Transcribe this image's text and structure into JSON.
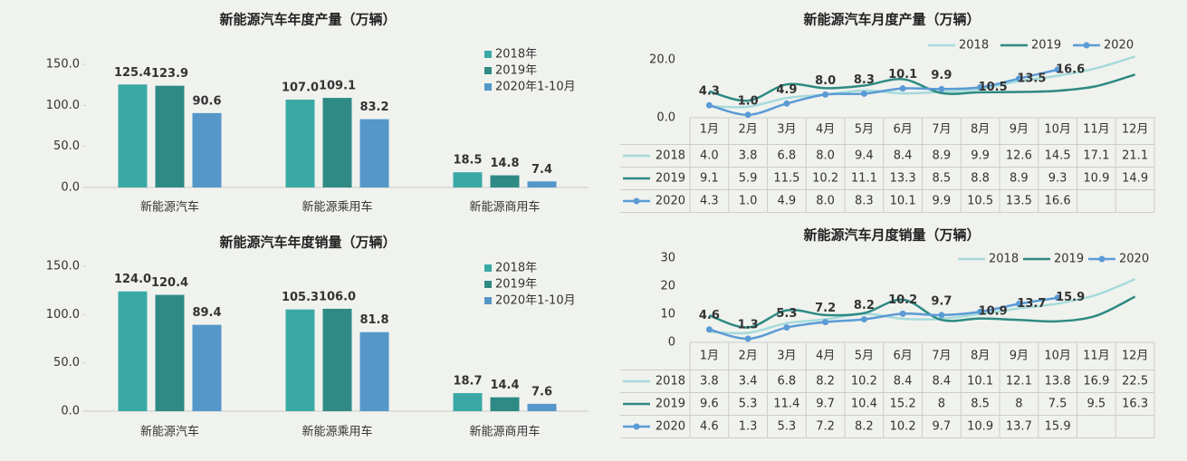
{
  "chart_data": [
    {
      "type": "bar",
      "title": "新能源汽车年度产量（万辆）",
      "categories": [
        "新能源汽车",
        "新能源乘用车",
        "新能源商用车"
      ],
      "series": [
        {
          "name": "2018年",
          "color": "#3aa9a6",
          "values": [
            125.4,
            107.0,
            18.5
          ],
          "value_labels": [
            "125.4",
            "107.0",
            "18.5"
          ]
        },
        {
          "name": "2019年",
          "color": "#2f8a86",
          "values": [
            123.9,
            109.1,
            14.8
          ],
          "value_labels": [
            "123.9",
            "109.1",
            "14.8"
          ]
        },
        {
          "name": "2020年1-10月",
          "color": "#5597c9",
          "values": [
            90.6,
            83.2,
            7.4
          ],
          "value_labels": [
            "90.6",
            "83.2",
            "7.4"
          ]
        }
      ],
      "ylim": [
        0,
        150
      ],
      "yticks": [
        {
          "value": 0,
          "label": "0.0"
        },
        {
          "value": 50,
          "label": "50.0"
        },
        {
          "value": 100,
          "label": "100.0"
        },
        {
          "value": 150,
          "label": "150.0"
        }
      ]
    },
    {
      "type": "line",
      "title": "新能源汽车月度产量（万辆）",
      "categories": [
        "1月",
        "2月",
        "3月",
        "4月",
        "5月",
        "6月",
        "7月",
        "8月",
        "9月",
        "10月",
        "11月",
        "12月"
      ],
      "series": [
        {
          "name": "2018",
          "color": "#a6dbdb",
          "values": [
            4.0,
            3.8,
            6.8,
            8.0,
            9.4,
            8.4,
            8.9,
            9.9,
            12.6,
            14.5,
            17.1,
            21.1
          ],
          "value_labels": [
            "4.0",
            "3.8",
            "6.8",
            "8.0",
            "9.4",
            "8.4",
            "8.9",
            "9.9",
            "12.6",
            "14.5",
            "17.1",
            "21.1"
          ]
        },
        {
          "name": "2019",
          "color": "#2e8a82",
          "values": [
            9.1,
            5.9,
            11.5,
            10.2,
            11.1,
            13.3,
            8.5,
            8.8,
            8.9,
            9.3,
            10.9,
            14.9
          ],
          "value_labels": [
            "9.1",
            "5.9",
            "11.5",
            "10.2",
            "11.1",
            "13.3",
            "8.5",
            "8.8",
            "8.9",
            "9.3",
            "10.9",
            "14.9"
          ]
        },
        {
          "name": "2020",
          "color": "#5b9bd5",
          "marker": true,
          "values": [
            4.3,
            1.0,
            4.9,
            8.0,
            8.3,
            10.1,
            9.9,
            10.5,
            13.5,
            16.6,
            null,
            null
          ],
          "value_labels": [
            "4.3",
            "1.0",
            "4.9",
            "8.0",
            "8.3",
            "10.1",
            "9.9",
            "10.5",
            "13.5",
            "16.6",
            null,
            null
          ]
        }
      ],
      "ylim": [
        0,
        22
      ],
      "yticks": [
        {
          "value": 0,
          "label": "0.0"
        },
        {
          "value": 20,
          "label": "20.0"
        }
      ]
    },
    {
      "type": "bar",
      "title": "新能源汽车年度销量（万辆）",
      "categories": [
        "新能源汽车",
        "新能源乘用车",
        "新能源商用车"
      ],
      "series": [
        {
          "name": "2018年",
          "color": "#3aa9a6",
          "values": [
            124.0,
            105.3,
            18.7
          ],
          "value_labels": [
            "124.0",
            "105.3",
            "18.7"
          ]
        },
        {
          "name": "2019年",
          "color": "#2f8a86",
          "values": [
            120.4,
            106.0,
            14.4
          ],
          "value_labels": [
            "120.4",
            "106.0",
            "14.4"
          ]
        },
        {
          "name": "2020年1-10月",
          "color": "#5597c9",
          "values": [
            89.4,
            81.8,
            7.6
          ],
          "value_labels": [
            "89.4",
            "81.8",
            "7.6"
          ]
        }
      ],
      "ylim": [
        0,
        150
      ],
      "yticks": [
        {
          "value": 0,
          "label": "0.0"
        },
        {
          "value": 50,
          "label": "50.0"
        },
        {
          "value": 100,
          "label": "100.0"
        },
        {
          "value": 150,
          "label": "150.0"
        }
      ]
    },
    {
      "type": "line",
      "title": "新能源汽车月度销量（万辆）",
      "categories": [
        "1月",
        "2月",
        "3月",
        "4月",
        "5月",
        "6月",
        "7月",
        "8月",
        "9月",
        "10月",
        "11月",
        "12月"
      ],
      "series": [
        {
          "name": "2018",
          "color": "#a6dbdb",
          "values": [
            3.8,
            3.4,
            6.8,
            8.2,
            10.2,
            8.4,
            8.4,
            10.1,
            12.1,
            13.8,
            16.9,
            22.5
          ],
          "value_labels": [
            "3.8",
            "3.4",
            "6.8",
            "8.2",
            "10.2",
            "8.4",
            "8.4",
            "10.1",
            "12.1",
            "13.8",
            "16.9",
            "22.5"
          ]
        },
        {
          "name": "2019",
          "color": "#2e8a82",
          "values": [
            9.6,
            5.3,
            11.4,
            9.7,
            10.4,
            15.2,
            8,
            8.5,
            8,
            7.5,
            9.5,
            16.3
          ],
          "value_labels": [
            "9.6",
            "5.3",
            "11.4",
            "9.7",
            "10.4",
            "15.2",
            "8",
            "8.5",
            "8",
            "7.5",
            "9.5",
            "16.3"
          ]
        },
        {
          "name": "2020",
          "color": "#5b9bd5",
          "marker": true,
          "values": [
            4.6,
            1.3,
            5.3,
            7.2,
            8.2,
            10.2,
            9.7,
            10.9,
            13.7,
            15.9,
            null,
            null
          ],
          "value_labels": [
            "4.6",
            "1.3",
            "5.3",
            "7.2",
            "8.2",
            "10.2",
            "9.7",
            "10.9",
            "13.7",
            "15.9",
            null,
            null
          ]
        }
      ],
      "ylim": [
        0,
        30
      ],
      "yticks": [
        0,
        10,
        20,
        30
      ]
    }
  ]
}
